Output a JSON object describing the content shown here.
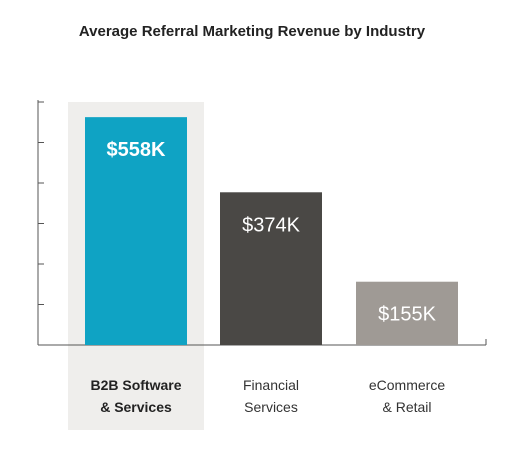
{
  "chart_data": {
    "type": "bar",
    "title": "Average Referral Marketing Revenue by Industry",
    "categories": [
      [
        "B2B Software",
        "& Services"
      ],
      [
        "Financial",
        "Services"
      ],
      [
        "eCommerce",
        "& Retail"
      ]
    ],
    "values": [
      558,
      374,
      155
    ],
    "value_labels": [
      "$558K",
      "$374K",
      "$155K"
    ],
    "unit": "$K",
    "ylim": [
      0,
      600
    ],
    "grid": false,
    "legend": "none",
    "highlight_index": 0,
    "colors": {
      "bars": [
        "#0fa3c4",
        "#4a4845",
        "#9f9a95"
      ],
      "highlight_band": "#efeeec",
      "axis": "#555555"
    }
  }
}
